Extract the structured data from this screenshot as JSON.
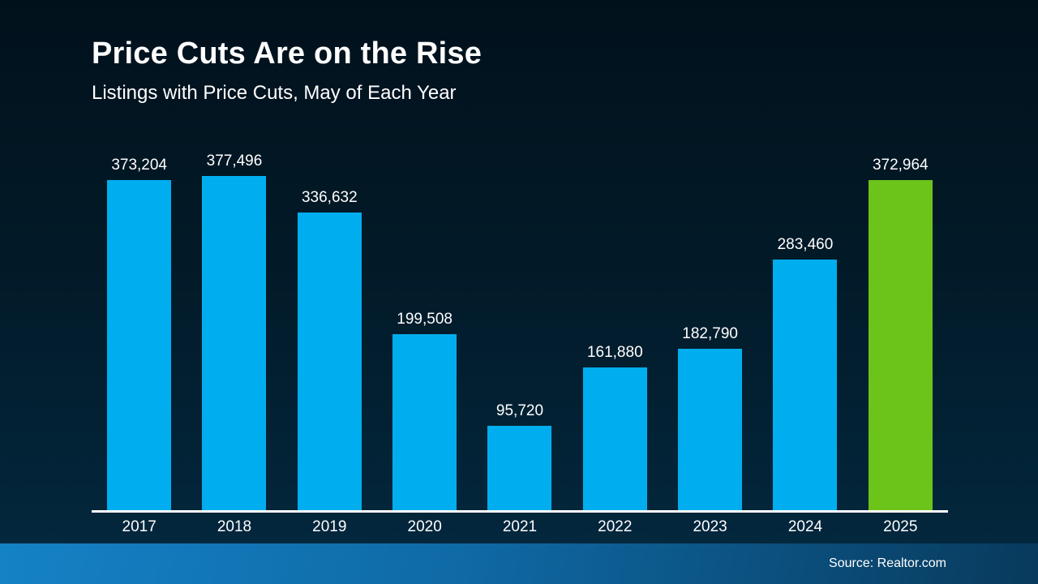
{
  "header": {
    "title": "Price Cuts Are on the Rise",
    "subtitle": "Listings with Price Cuts, May of Each Year"
  },
  "footer": {
    "source": "Source: Realtor.com"
  },
  "colors": {
    "bar": "#00AEEF",
    "highlight_bar": "#6CC41A",
    "background_top": "#01111C",
    "background_bottom": "#032940",
    "footer_gradient_left": "#1582C6",
    "footer_gradient_right": "#083A5C",
    "axis_line": "#FFFFFF",
    "text": "#FFFFFF"
  },
  "chart_data": {
    "type": "bar",
    "title": "Price Cuts Are on the Rise",
    "subtitle": "Listings with Price Cuts, May of Each Year",
    "categories": [
      "2017",
      "2018",
      "2019",
      "2020",
      "2021",
      "2022",
      "2023",
      "2024",
      "2025"
    ],
    "values": [
      373204,
      377496,
      336632,
      199508,
      95720,
      161880,
      182790,
      283460,
      372964
    ],
    "highlight_category": "2025",
    "data_labels": true,
    "value_label_format": "thousands-comma",
    "xlabel": "",
    "ylabel": "",
    "ylim": [
      0,
      400000
    ],
    "grid": false,
    "legend": false,
    "y_axis_visible": false,
    "baseline_visible": true
  }
}
